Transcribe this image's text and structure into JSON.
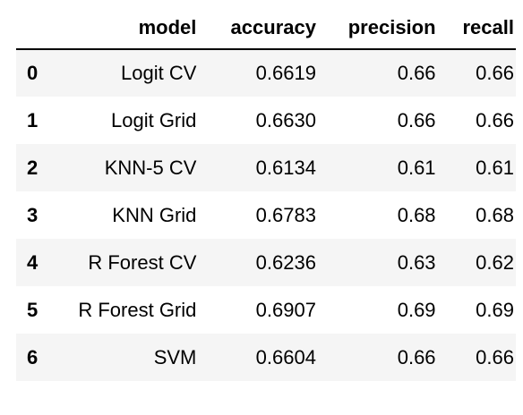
{
  "table": {
    "index_header": "",
    "columns": [
      "model",
      "accuracy",
      "precision",
      "recall"
    ],
    "rows": [
      {
        "index": "0",
        "model": "Logit CV",
        "accuracy": "0.6619",
        "precision": "0.66",
        "recall": "0.66"
      },
      {
        "index": "1",
        "model": "Logit Grid",
        "accuracy": "0.6630",
        "precision": "0.66",
        "recall": "0.66"
      },
      {
        "index": "2",
        "model": "KNN-5 CV",
        "accuracy": "0.6134",
        "precision": "0.61",
        "recall": "0.61"
      },
      {
        "index": "3",
        "model": "KNN Grid",
        "accuracy": "0.6783",
        "precision": "0.68",
        "recall": "0.68"
      },
      {
        "index": "4",
        "model": "R Forest CV",
        "accuracy": "0.6236",
        "precision": "0.63",
        "recall": "0.62"
      },
      {
        "index": "5",
        "model": "R Forest Grid",
        "accuracy": "0.6907",
        "precision": "0.69",
        "recall": "0.69"
      },
      {
        "index": "6",
        "model": "SVM",
        "accuracy": "0.6604",
        "precision": "0.66",
        "recall": "0.66"
      }
    ]
  },
  "colors": {
    "stripe": "#f5f5f5",
    "background": "#ffffff",
    "text": "#000000",
    "header_rule": "#000000"
  }
}
